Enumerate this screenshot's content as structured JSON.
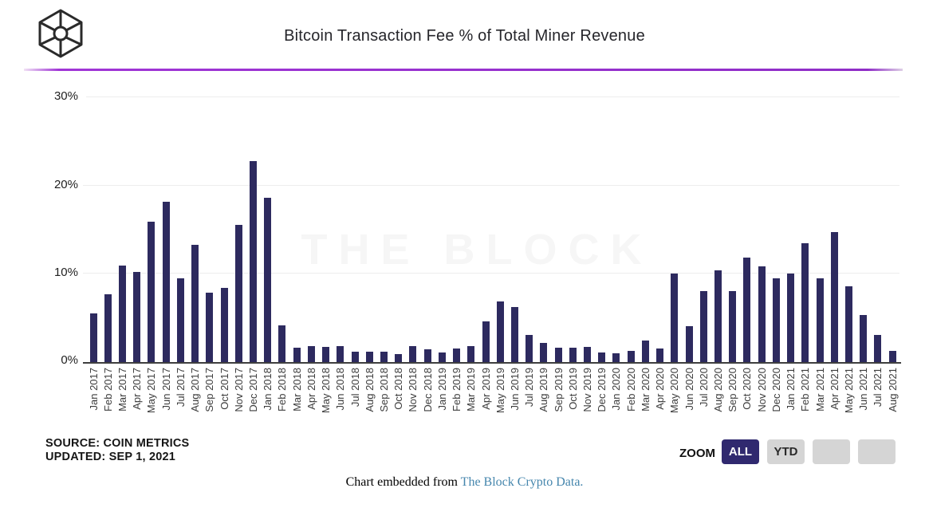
{
  "header": {
    "title": "Bitcoin Transaction Fee % of Total Miner Revenue"
  },
  "chart_data": {
    "type": "bar",
    "title": "Bitcoin Transaction Fee % of Total Miner Revenue",
    "watermark": "THE BLOCK",
    "bar_color": "#2d2a5f",
    "grid": true,
    "ylim": [
      0,
      30
    ],
    "y_ticks": [
      "0%",
      "10%",
      "20%",
      "30%"
    ],
    "xlabel": "",
    "ylabel": "",
    "categories": [
      "Jan 2017",
      "Feb 2017",
      "Mar 2017",
      "Apr 2017",
      "May 2017",
      "Jun 2017",
      "Jul 2017",
      "Aug 2017",
      "Sep 2017",
      "Oct 2017",
      "Nov 2017",
      "Dec 2017",
      "Jan 2018",
      "Feb 2018",
      "Mar 2018",
      "Apr 2018",
      "May 2018",
      "Jun 2018",
      "Jul 2018",
      "Aug 2018",
      "Sep 2018",
      "Oct 2018",
      "Nov 2018",
      "Dec 2018",
      "Jan 2019",
      "Feb 2019",
      "Mar 2019",
      "Apr 2019",
      "May 2019",
      "Jun 2019",
      "Jul 2019",
      "Aug 2019",
      "Sep 2019",
      "Oct 2019",
      "Nov 2019",
      "Dec 2019",
      "Jan 2020",
      "Feb 2020",
      "Mar 2020",
      "Apr 2020",
      "May 2020",
      "Jun 2020",
      "Jul 2020",
      "Aug 2020",
      "Sep 2020",
      "Oct 2020",
      "Nov 2020",
      "Dec 2020",
      "Jan 2021",
      "Feb 2021",
      "Mar 2021",
      "Apr 2021",
      "May 2021",
      "Jun 2021",
      "Jul 2021",
      "Aug 2021"
    ],
    "values": [
      5.5,
      7.7,
      10.9,
      10.2,
      15.9,
      18.2,
      9.5,
      13.3,
      7.9,
      8.4,
      15.5,
      22.8,
      18.6,
      4.2,
      1.6,
      1.8,
      1.7,
      1.8,
      1.15,
      1.15,
      1.15,
      0.95,
      1.8,
      1.45,
      1.1,
      1.5,
      1.85,
      4.6,
      6.9,
      6.2,
      3.1,
      2.2,
      1.6,
      1.6,
      1.75,
      1.1,
      1.0,
      1.3,
      2.4,
      1.5,
      10.0,
      4.1,
      8.0,
      10.4,
      8.0,
      11.8,
      10.8,
      9.5,
      10.0,
      13.5,
      9.5,
      14.7,
      8.6,
      5.3,
      3.1,
      1.3
    ]
  },
  "footer": {
    "source_line1": "SOURCE: COIN METRICS",
    "source_line2": "UPDATED: SEP 1, 2021",
    "zoom_label": "ZOOM",
    "zoom_buttons": [
      {
        "label": "ALL",
        "active": true
      },
      {
        "label": "YTD",
        "active": false
      },
      {
        "label": "",
        "active": false
      },
      {
        "label": "",
        "active": false
      }
    ],
    "embed_text": "Chart embedded from ",
    "embed_link": "The Block Crypto Data."
  },
  "colors": {
    "bar": "#2d2a5f",
    "accent_line": "#8f2dc7",
    "active_button": "#30296f",
    "inactive_button": "#d5d5d5",
    "gridline": "#ededed",
    "link": "#4586ad",
    "watermark": "#f6f6f6"
  }
}
